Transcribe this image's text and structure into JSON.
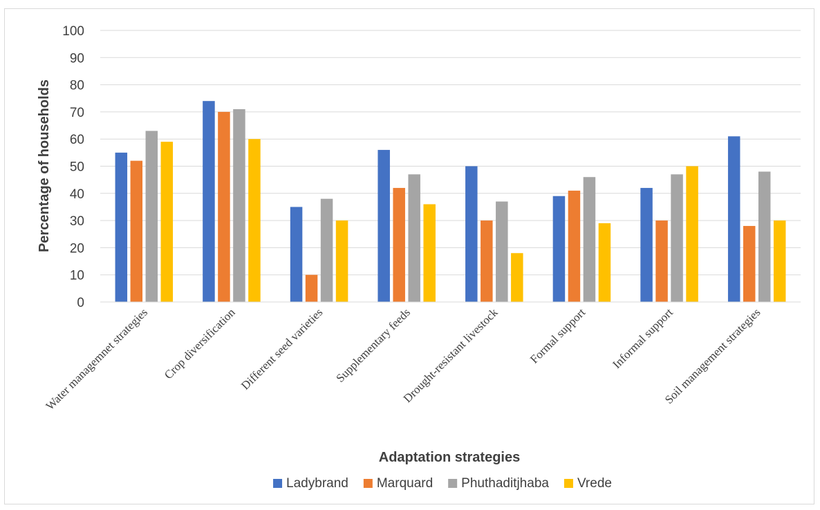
{
  "chart_data": {
    "type": "bar",
    "categories": [
      "Water managemnet strategies",
      "Crop diversification",
      "Different seed varieties",
      "Supplementary feeds",
      "Drought-resistant livestock",
      "Formal support",
      "Informal support",
      "Soil management strategies"
    ],
    "series": [
      {
        "name": "Ladybrand",
        "color": "#4472C4",
        "values": [
          55,
          74,
          35,
          56,
          50,
          39,
          42,
          61
        ]
      },
      {
        "name": "Marquard",
        "color": "#ED7D31",
        "values": [
          52,
          70,
          10,
          42,
          30,
          41,
          30,
          28
        ]
      },
      {
        "name": "Phuthaditjhaba",
        "color": "#A5A5A5",
        "values": [
          63,
          71,
          38,
          47,
          37,
          46,
          47,
          48
        ]
      },
      {
        "name": "Vrede",
        "color": "#FFC000",
        "values": [
          59,
          60,
          30,
          36,
          18,
          29,
          50,
          30
        ]
      }
    ],
    "xlabel": "Adaptation strategies",
    "ylabel": "Percentage of households",
    "ylim": [
      0,
      100
    ],
    "yticks": [
      "0",
      "10",
      "20",
      "30",
      "40",
      "50",
      "60",
      "70",
      "80",
      "90",
      "100"
    ],
    "grid": true,
    "legend_position": "bottom"
  }
}
